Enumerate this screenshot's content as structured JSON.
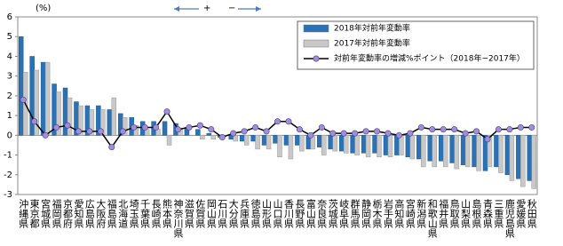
{
  "chart_data": {
    "type": "bar_line",
    "y_label": "(%)",
    "annotation_plus": "+",
    "annotation_minus": "−",
    "categories": [
      "沖縄県",
      "東京都",
      "宮城県",
      "福岡県",
      "京都府",
      "愛知県",
      "広島県",
      "大阪府",
      "福島県",
      "北海道",
      "埼玉県",
      "千葉県",
      "長崎県",
      "熊本県",
      "神奈川県",
      "滋賀県",
      "佐賀県",
      "岡山県",
      "石川県",
      "大分県",
      "兵庫県",
      "徳島県",
      "山形県",
      "山口県",
      "香川県",
      "長野県",
      "富山県",
      "奈良県",
      "茨城県",
      "岐阜県",
      "群馬県",
      "静岡県",
      "栃木県",
      "岩手県",
      "高知県",
      "宮崎県",
      "新潟県",
      "和歌山県",
      "福井県",
      "鳥取県",
      "山梨県",
      "島根県",
      "青森県",
      "三重県",
      "鹿児島県",
      "愛媛県",
      "秋田県"
    ],
    "series": [
      {
        "name": "2018年対前年変動率",
        "type": "bar",
        "color": "#2a72b5",
        "values": [
          5.0,
          4.0,
          3.7,
          2.6,
          2.4,
          1.7,
          1.5,
          1.5,
          1.3,
          1.1,
          0.9,
          0.7,
          0.7,
          0.7,
          0.6,
          0.4,
          0.3,
          0.1,
          -0.1,
          -0.2,
          -0.3,
          -0.3,
          -0.5,
          -0.4,
          -0.5,
          -0.5,
          -0.7,
          -0.6,
          -0.7,
          -0.8,
          -0.9,
          -0.9,
          -0.9,
          -1.0,
          -1.0,
          -1.1,
          -1.2,
          -1.3,
          -1.3,
          -1.4,
          -1.5,
          -1.6,
          -1.8,
          -1.6,
          -2.0,
          -2.2,
          -2.3
        ]
      },
      {
        "name": "2017年対前年変動率",
        "type": "bar",
        "color": "#c8c8c8",
        "values": [
          3.2,
          3.3,
          3.7,
          2.2,
          1.9,
          1.5,
          1.3,
          1.3,
          1.9,
          0.9,
          0.5,
          0.3,
          0.3,
          -0.5,
          0.3,
          0.0,
          -0.2,
          -0.2,
          0.0,
          -0.3,
          -0.5,
          -0.7,
          -0.7,
          -1.1,
          -1.2,
          -0.8,
          -0.7,
          -1.0,
          -0.8,
          -0.9,
          -1.0,
          -1.1,
          -1.1,
          -1.1,
          -1.0,
          -1.2,
          -1.6,
          -1.6,
          -1.6,
          -1.7,
          -1.6,
          -1.8,
          -1.6,
          -1.9,
          -2.3,
          -2.6,
          -2.7
        ]
      },
      {
        "name": "対前年変動率の増減%ポイント（2018年−2017年）",
        "type": "line",
        "color": "#000000",
        "marker_color": "#a08ed8",
        "values": [
          1.8,
          0.7,
          0.0,
          0.4,
          0.5,
          0.2,
          0.2,
          0.2,
          -0.6,
          0.2,
          0.4,
          0.4,
          0.4,
          1.2,
          0.3,
          0.4,
          0.5,
          0.3,
          -0.1,
          0.1,
          0.2,
          0.4,
          0.2,
          0.7,
          0.7,
          0.3,
          0.0,
          0.4,
          0.1,
          0.1,
          0.1,
          0.2,
          0.2,
          0.1,
          0.0,
          0.1,
          0.4,
          0.3,
          0.3,
          0.3,
          0.1,
          0.2,
          -0.2,
          0.3,
          0.3,
          0.4,
          0.4
        ]
      }
    ],
    "ylim": [
      -3,
      6
    ],
    "yticks": [
      -3,
      -2,
      -1,
      0,
      1,
      2,
      3,
      4,
      5,
      6
    ]
  }
}
